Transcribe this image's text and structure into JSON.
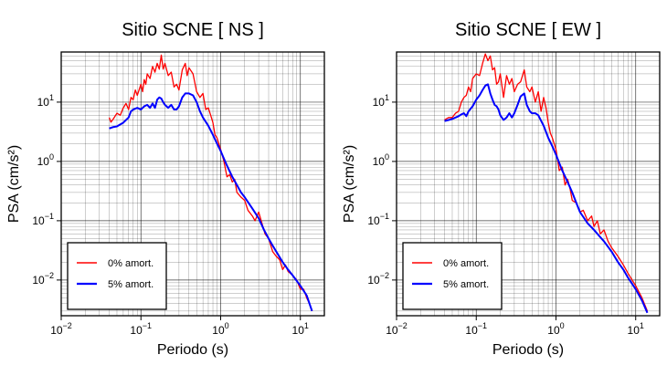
{
  "chart_data": [
    {
      "type": "line",
      "title": "Sitio SCNE [ NS ]",
      "xlabel": "Periodo (s)",
      "ylabel": "PSA (cm/s²)",
      "xscale": "log",
      "yscale": "log",
      "xlim": [
        0.01,
        20
      ],
      "ylim": [
        0.0025,
        70
      ],
      "grid": true,
      "legend": "bottom-left",
      "x_ticks": [
        {
          "base": "10",
          "exp": "−2"
        },
        {
          "base": "10",
          "exp": "−1"
        },
        {
          "base": "10",
          "exp": "0"
        },
        {
          "base": "10",
          "exp": "1"
        }
      ],
      "y_ticks": [
        {
          "base": "10",
          "exp": "−2"
        },
        {
          "base": "10",
          "exp": "−1"
        },
        {
          "base": "10",
          "exp": "0"
        },
        {
          "base": "10",
          "exp": "1"
        }
      ],
      "series": [
        {
          "name": "0% amort.",
          "color": "#ff0000",
          "points": [
            [
              0.04,
              5.5
            ],
            [
              0.042,
              4.6
            ],
            [
              0.045,
              5.2
            ],
            [
              0.05,
              6.5
            ],
            [
              0.055,
              6.0
            ],
            [
              0.06,
              8.0
            ],
            [
              0.065,
              9.5
            ],
            [
              0.07,
              7.5
            ],
            [
              0.075,
              12.0
            ],
            [
              0.08,
              11.0
            ],
            [
              0.085,
              16.0
            ],
            [
              0.09,
              13.0
            ],
            [
              0.1,
              20.0
            ],
            [
              0.105,
              15.0
            ],
            [
              0.11,
              24.0
            ],
            [
              0.115,
              20.0
            ],
            [
              0.12,
              30.0
            ],
            [
              0.13,
              25.0
            ],
            [
              0.14,
              40.0
            ],
            [
              0.15,
              32.0
            ],
            [
              0.16,
              45.0
            ],
            [
              0.17,
              36.0
            ],
            [
              0.18,
              62.0
            ],
            [
              0.19,
              36.0
            ],
            [
              0.2,
              45.0
            ],
            [
              0.22,
              28.0
            ],
            [
              0.24,
              32.0
            ],
            [
              0.26,
              18.0
            ],
            [
              0.28,
              20.0
            ],
            [
              0.3,
              16.0
            ],
            [
              0.33,
              35.0
            ],
            [
              0.36,
              45.0
            ],
            [
              0.38,
              28.0
            ],
            [
              0.4,
              38.0
            ],
            [
              0.45,
              30.0
            ],
            [
              0.5,
              15.0
            ],
            [
              0.55,
              12.0
            ],
            [
              0.6,
              14.0
            ],
            [
              0.65,
              7.5
            ],
            [
              0.7,
              8.0
            ],
            [
              0.75,
              6.0
            ],
            [
              0.8,
              4.5
            ],
            [
              0.85,
              2.8
            ],
            [
              0.9,
              2.5
            ],
            [
              1.0,
              1.6
            ],
            [
              1.1,
              1.0
            ],
            [
              1.2,
              0.55
            ],
            [
              1.3,
              0.6
            ],
            [
              1.4,
              0.45
            ],
            [
              1.5,
              0.5
            ],
            [
              1.6,
              0.3
            ],
            [
              1.8,
              0.25
            ],
            [
              2.0,
              0.22
            ],
            [
              2.2,
              0.15
            ],
            [
              2.5,
              0.12
            ],
            [
              2.7,
              0.1
            ],
            [
              3.0,
              0.14
            ],
            [
              3.3,
              0.09
            ],
            [
              3.6,
              0.06
            ],
            [
              4.0,
              0.05
            ],
            [
              4.5,
              0.03
            ],
            [
              5.0,
              0.025
            ],
            [
              5.5,
              0.022
            ],
            [
              6.0,
              0.015
            ],
            [
              6.5,
              0.018
            ],
            [
              7.0,
              0.014
            ],
            [
              8.0,
              0.012
            ],
            [
              9.0,
              0.01
            ],
            [
              10.0,
              0.007
            ],
            [
              11.0,
              0.007
            ],
            [
              12.0,
              0.005
            ],
            [
              13.0,
              0.004
            ],
            [
              14.0,
              0.003
            ]
          ]
        },
        {
          "name": "5% amort.",
          "color": "#0000ff",
          "points": [
            [
              0.04,
              3.6
            ],
            [
              0.045,
              3.8
            ],
            [
              0.05,
              3.9
            ],
            [
              0.055,
              4.2
            ],
            [
              0.06,
              4.5
            ],
            [
              0.065,
              5.0
            ],
            [
              0.07,
              5.5
            ],
            [
              0.075,
              7.0
            ],
            [
              0.08,
              7.5
            ],
            [
              0.09,
              8.0
            ],
            [
              0.1,
              7.5
            ],
            [
              0.11,
              8.5
            ],
            [
              0.12,
              9.0
            ],
            [
              0.13,
              8.0
            ],
            [
              0.14,
              9.5
            ],
            [
              0.15,
              8.0
            ],
            [
              0.16,
              11.0
            ],
            [
              0.17,
              12.0
            ],
            [
              0.18,
              11.5
            ],
            [
              0.19,
              10.0
            ],
            [
              0.2,
              9.0
            ],
            [
              0.22,
              8.0
            ],
            [
              0.24,
              9.0
            ],
            [
              0.26,
              7.5
            ],
            [
              0.28,
              7.5
            ],
            [
              0.3,
              8.5
            ],
            [
              0.33,
              12.0
            ],
            [
              0.36,
              14.0
            ],
            [
              0.4,
              14.0
            ],
            [
              0.45,
              13.0
            ],
            [
              0.5,
              10.0
            ],
            [
              0.55,
              7.0
            ],
            [
              0.6,
              5.5
            ],
            [
              0.7,
              4.0
            ],
            [
              0.8,
              2.8
            ],
            [
              0.9,
              2.0
            ],
            [
              1.0,
              1.5
            ],
            [
              1.2,
              0.85
            ],
            [
              1.4,
              0.55
            ],
            [
              1.6,
              0.4
            ],
            [
              1.8,
              0.3
            ],
            [
              2.0,
              0.25
            ],
            [
              2.5,
              0.16
            ],
            [
              3.0,
              0.11
            ],
            [
              3.5,
              0.07
            ],
            [
              4.0,
              0.05
            ],
            [
              4.5,
              0.038
            ],
            [
              5.0,
              0.03
            ],
            [
              6.0,
              0.02
            ],
            [
              7.0,
              0.015
            ],
            [
              8.0,
              0.012
            ],
            [
              10.0,
              0.008
            ],
            [
              12.0,
              0.0055
            ],
            [
              14.0,
              0.003
            ]
          ]
        }
      ]
    },
    {
      "type": "line",
      "title": "Sitio SCNE [ EW ]",
      "xlabel": "Periodo (s)",
      "ylabel": "PSA (cm/s²)",
      "xscale": "log",
      "yscale": "log",
      "xlim": [
        0.01,
        20
      ],
      "ylim": [
        0.0025,
        70
      ],
      "grid": true,
      "legend": "bottom-left",
      "x_ticks": [
        {
          "base": "10",
          "exp": "−2"
        },
        {
          "base": "10",
          "exp": "−1"
        },
        {
          "base": "10",
          "exp": "0"
        },
        {
          "base": "10",
          "exp": "1"
        }
      ],
      "y_ticks": [
        {
          "base": "10",
          "exp": "−2"
        },
        {
          "base": "10",
          "exp": "−1"
        },
        {
          "base": "10",
          "exp": "0"
        },
        {
          "base": "10",
          "exp": "1"
        }
      ],
      "series": [
        {
          "name": "0% amort.",
          "color": "#ff0000",
          "points": [
            [
              0.04,
              5.0
            ],
            [
              0.045,
              5.5
            ],
            [
              0.05,
              5.5
            ],
            [
              0.055,
              6.5
            ],
            [
              0.06,
              7.0
            ],
            [
              0.065,
              10.0
            ],
            [
              0.07,
              12.0
            ],
            [
              0.075,
              13.0
            ],
            [
              0.08,
              18.0
            ],
            [
              0.085,
              15.0
            ],
            [
              0.09,
              25.0
            ],
            [
              0.1,
              30.0
            ],
            [
              0.11,
              28.0
            ],
            [
              0.12,
              45.0
            ],
            [
              0.13,
              65.0
            ],
            [
              0.14,
              50.0
            ],
            [
              0.15,
              60.0
            ],
            [
              0.16,
              35.0
            ],
            [
              0.17,
              38.0
            ],
            [
              0.18,
              20.0
            ],
            [
              0.19,
              22.0
            ],
            [
              0.2,
              30.0
            ],
            [
              0.22,
              12.0
            ],
            [
              0.24,
              28.0
            ],
            [
              0.26,
              20.0
            ],
            [
              0.28,
              25.0
            ],
            [
              0.3,
              15.0
            ],
            [
              0.33,
              20.0
            ],
            [
              0.36,
              22.0
            ],
            [
              0.4,
              35.0
            ],
            [
              0.43,
              18.0
            ],
            [
              0.47,
              15.0
            ],
            [
              0.5,
              18.0
            ],
            [
              0.55,
              10.0
            ],
            [
              0.6,
              15.0
            ],
            [
              0.65,
              7.0
            ],
            [
              0.7,
              12.0
            ],
            [
              0.75,
              8.0
            ],
            [
              0.8,
              4.5
            ],
            [
              0.85,
              3.0
            ],
            [
              0.9,
              2.5
            ],
            [
              1.0,
              1.6
            ],
            [
              1.1,
              0.7
            ],
            [
              1.2,
              0.8
            ],
            [
              1.3,
              0.4
            ],
            [
              1.4,
              0.5
            ],
            [
              1.5,
              0.35
            ],
            [
              1.6,
              0.22
            ],
            [
              1.8,
              0.2
            ],
            [
              2.0,
              0.14
            ],
            [
              2.2,
              0.15
            ],
            [
              2.5,
              0.1
            ],
            [
              2.8,
              0.12
            ],
            [
              3.0,
              0.08
            ],
            [
              3.3,
              0.1
            ],
            [
              3.6,
              0.06
            ],
            [
              4.0,
              0.07
            ],
            [
              4.5,
              0.045
            ],
            [
              5.0,
              0.035
            ],
            [
              6.0,
              0.025
            ],
            [
              7.0,
              0.018
            ],
            [
              8.0,
              0.013
            ],
            [
              10.0,
              0.008
            ],
            [
              12.0,
              0.005
            ],
            [
              14.0,
              0.003
            ]
          ]
        },
        {
          "name": "5% amort.",
          "color": "#0000ff",
          "points": [
            [
              0.04,
              4.8
            ],
            [
              0.045,
              5.0
            ],
            [
              0.05,
              5.2
            ],
            [
              0.055,
              5.5
            ],
            [
              0.06,
              5.8
            ],
            [
              0.065,
              6.2
            ],
            [
              0.07,
              6.5
            ],
            [
              0.075,
              5.8
            ],
            [
              0.08,
              7.0
            ],
            [
              0.09,
              8.5
            ],
            [
              0.1,
              11.0
            ],
            [
              0.11,
              13.0
            ],
            [
              0.12,
              16.0
            ],
            [
              0.13,
              19.0
            ],
            [
              0.14,
              20.0
            ],
            [
              0.15,
              14.0
            ],
            [
              0.16,
              11.0
            ],
            [
              0.17,
              9.0
            ],
            [
              0.18,
              8.5
            ],
            [
              0.19,
              7.5
            ],
            [
              0.2,
              6.0
            ],
            [
              0.22,
              5.0
            ],
            [
              0.24,
              5.5
            ],
            [
              0.26,
              6.5
            ],
            [
              0.28,
              5.5
            ],
            [
              0.3,
              6.5
            ],
            [
              0.33,
              9.0
            ],
            [
              0.36,
              12.5
            ],
            [
              0.4,
              14.0
            ],
            [
              0.43,
              9.0
            ],
            [
              0.47,
              7.0
            ],
            [
              0.5,
              6.5
            ],
            [
              0.55,
              6.5
            ],
            [
              0.6,
              6.0
            ],
            [
              0.7,
              4.0
            ],
            [
              0.8,
              2.5
            ],
            [
              0.9,
              1.8
            ],
            [
              1.0,
              1.3
            ],
            [
              1.2,
              0.7
            ],
            [
              1.4,
              0.45
            ],
            [
              1.6,
              0.3
            ],
            [
              1.8,
              0.2
            ],
            [
              2.0,
              0.14
            ],
            [
              2.5,
              0.09
            ],
            [
              3.0,
              0.07
            ],
            [
              3.5,
              0.055
            ],
            [
              4.0,
              0.045
            ],
            [
              5.0,
              0.03
            ],
            [
              6.0,
              0.02
            ],
            [
              7.0,
              0.015
            ],
            [
              8.0,
              0.011
            ],
            [
              10.0,
              0.007
            ],
            [
              12.0,
              0.0045
            ],
            [
              14.0,
              0.0028
            ]
          ]
        }
      ]
    }
  ]
}
